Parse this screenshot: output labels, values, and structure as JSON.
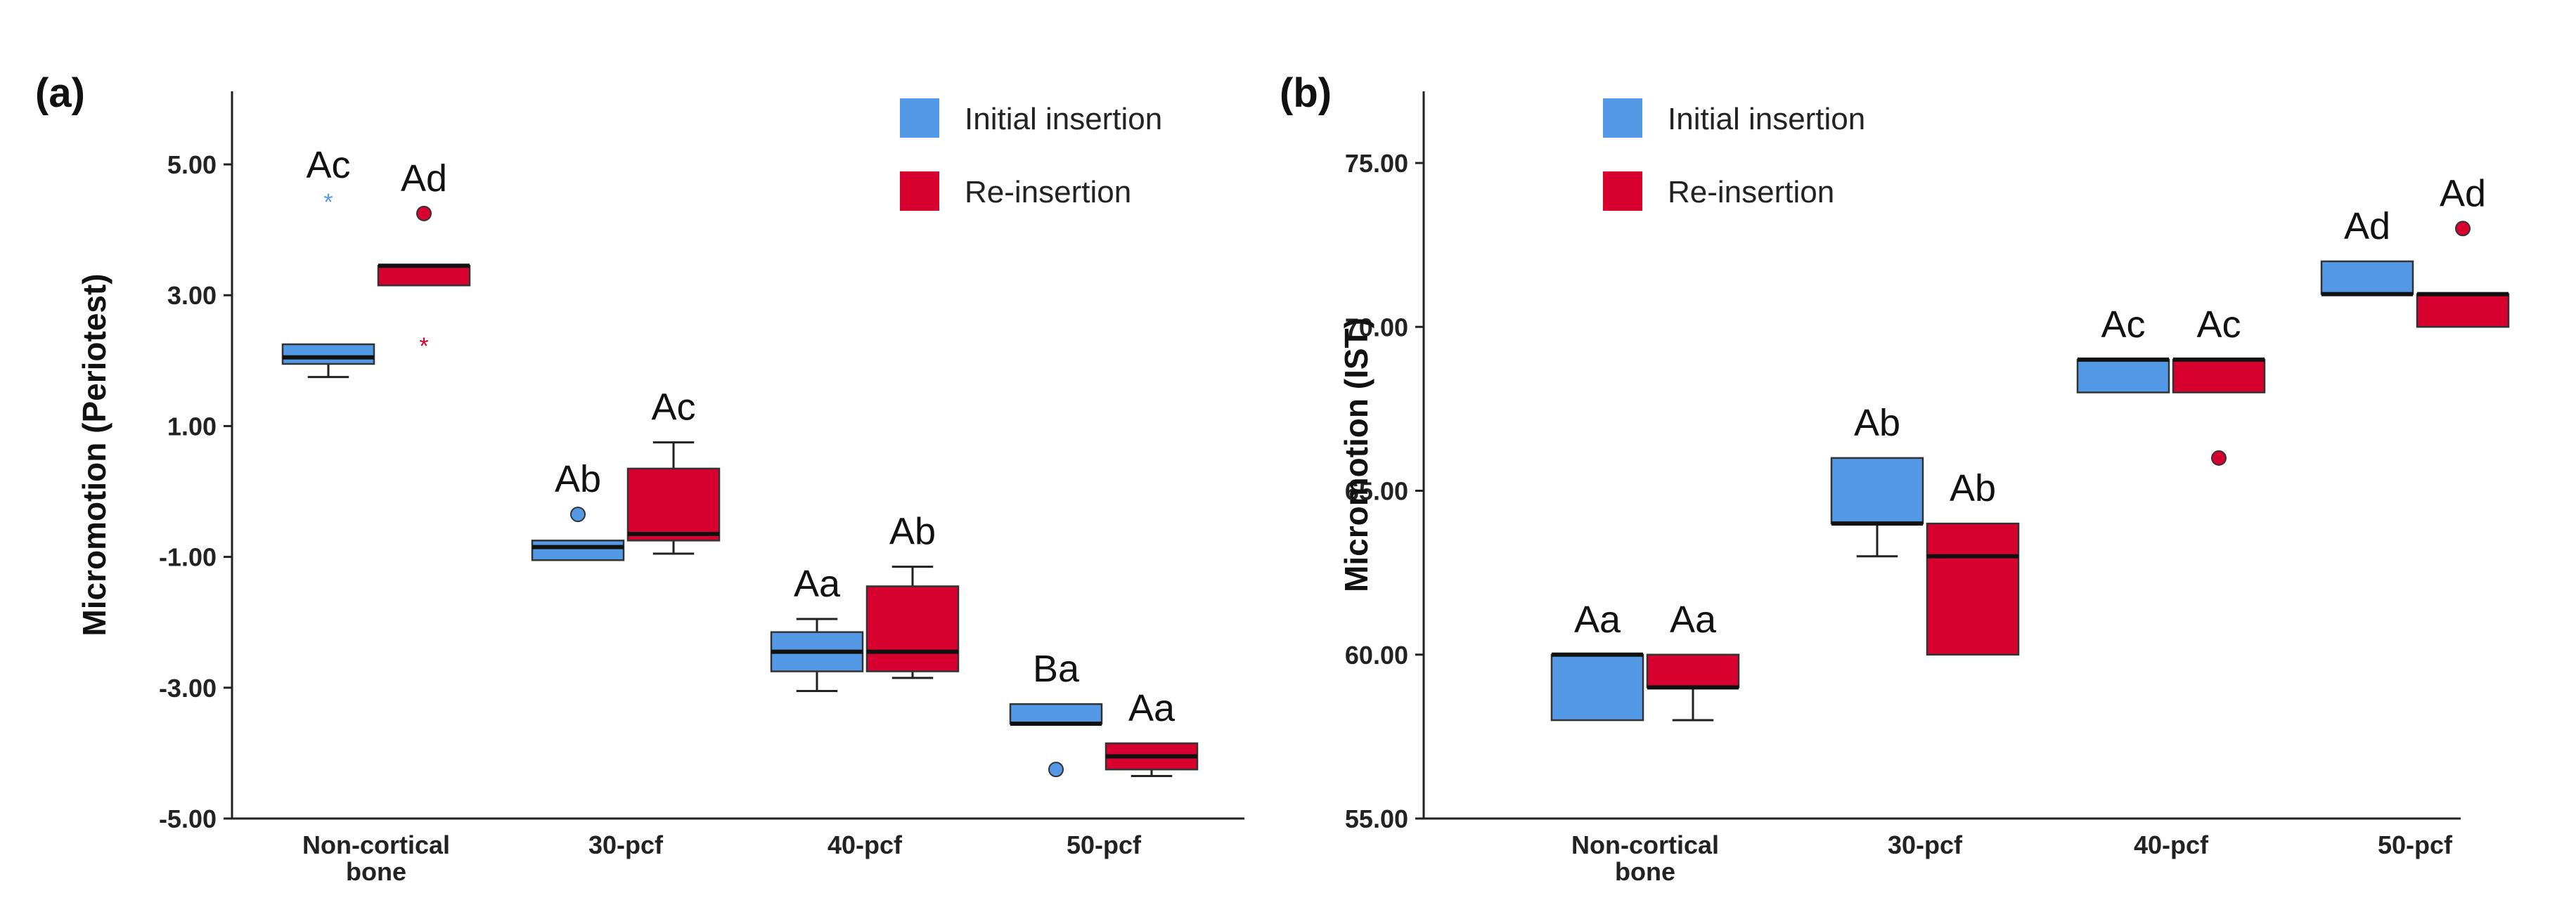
{
  "colors": {
    "initial": "#5499e5",
    "reinsertion": "#d8002f"
  },
  "legend": {
    "initial": "Initial insertion",
    "reinsertion": "Re-insertion"
  },
  "chart_data": [
    {
      "type": "box",
      "panel_label": "(a)",
      "ylabel": "Micromotion (Periotest)",
      "ylim": [
        -5,
        6
      ],
      "yticks": [
        "5.00",
        "3.00",
        "1.00",
        "-1.00",
        "-3.00",
        "-5.00"
      ],
      "ytick_values": [
        5,
        3,
        1,
        -1,
        -3,
        -5
      ],
      "categories": [
        [
          "Non-cortical",
          "bone"
        ],
        [
          "30-pcf"
        ],
        [
          "40-pcf"
        ],
        [
          "50-pcf"
        ]
      ],
      "series": [
        {
          "name": "Initial insertion",
          "boxes": [
            {
              "whislo": 1.75,
              "q1": 1.95,
              "med": 2.05,
              "q3": 2.25,
              "whishi": 2.25,
              "outliers": [],
              "extremes": [
                4.45
              ],
              "sig": "Ac"
            },
            {
              "whislo": -1.05,
              "q1": -1.05,
              "med": -0.85,
              "q3": -0.75,
              "whishi": -0.75,
              "outliers": [
                -0.35
              ],
              "extremes": [],
              "sig": "Ab"
            },
            {
              "whislo": -3.05,
              "q1": -2.75,
              "med": -2.45,
              "q3": -2.15,
              "whishi": -1.95,
              "outliers": [],
              "extremes": [],
              "sig": "Aa"
            },
            {
              "whislo": -3.55,
              "q1": -3.55,
              "med": -3.55,
              "q3": -3.25,
              "whishi": -3.25,
              "outliers": [
                -4.25
              ],
              "extremes": [],
              "sig": "Ba"
            }
          ]
        },
        {
          "name": "Re-insertion",
          "boxes": [
            {
              "whislo": 3.15,
              "q1": 3.15,
              "med": 3.45,
              "q3": 3.45,
              "whishi": 3.45,
              "outliers": [
                4.25
              ],
              "extremes": [
                2.25
              ],
              "sig": "Ad"
            },
            {
              "whislo": -0.95,
              "q1": -0.75,
              "med": -0.65,
              "q3": 0.35,
              "whishi": 0.75,
              "outliers": [],
              "extremes": [],
              "sig": "Ac"
            },
            {
              "whislo": -2.85,
              "q1": -2.75,
              "med": -2.45,
              "q3": -1.45,
              "whishi": -1.15,
              "outliers": [],
              "extremes": [],
              "sig": "Ab"
            },
            {
              "whislo": -4.35,
              "q1": -4.25,
              "med": -4.05,
              "q3": -3.85,
              "whishi": -3.85,
              "outliers": [],
              "extremes": [],
              "sig": "Aa"
            }
          ]
        }
      ]
    },
    {
      "type": "box",
      "panel_label": "(b)",
      "ylabel": "Micromotion (IST)",
      "ylim": [
        55,
        77
      ],
      "yticks": [
        "75.00",
        "70.00",
        "65.00",
        "60.00",
        "55.00"
      ],
      "ytick_values": [
        75,
        70,
        65,
        60,
        55
      ],
      "categories": [
        [
          "Non-cortical",
          "bone"
        ],
        [
          "30-pcf"
        ],
        [
          "40-pcf"
        ],
        [
          "50-pcf"
        ]
      ],
      "series": [
        {
          "name": "Initial insertion",
          "boxes": [
            {
              "whislo": 58,
              "q1": 58,
              "med": 60,
              "q3": 60,
              "whishi": 60,
              "outliers": [],
              "extremes": [],
              "sig": "Aa"
            },
            {
              "whislo": 63,
              "q1": 64,
              "med": 64,
              "q3": 66,
              "whishi": 66,
              "outliers": [],
              "extremes": [],
              "sig": "Ab"
            },
            {
              "whislo": 68,
              "q1": 68,
              "med": 69,
              "q3": 69,
              "whishi": 69,
              "outliers": [],
              "extremes": [],
              "sig": "Ac"
            },
            {
              "whislo": 71,
              "q1": 71,
              "med": 71,
              "q3": 72,
              "whishi": 72,
              "outliers": [],
              "extremes": [],
              "sig": "Ad"
            }
          ]
        },
        {
          "name": "Re-insertion",
          "boxes": [
            {
              "whislo": 58,
              "q1": 59,
              "med": 59,
              "q3": 60,
              "whishi": 60,
              "outliers": [],
              "extremes": [],
              "sig": "Aa"
            },
            {
              "whislo": 60,
              "q1": 60,
              "med": 63,
              "q3": 64,
              "whishi": 64,
              "outliers": [],
              "extremes": [],
              "sig": "Ab"
            },
            {
              "whislo": 68,
              "q1": 68,
              "med": 69,
              "q3": 69,
              "whishi": 69,
              "outliers": [
                66
              ],
              "extremes": [],
              "sig": "Ac"
            },
            {
              "whislo": 70,
              "q1": 70,
              "med": 71,
              "q3": 71,
              "whishi": 71,
              "outliers": [
                73
              ],
              "extremes": [],
              "sig": "Ad"
            }
          ]
        }
      ]
    }
  ]
}
